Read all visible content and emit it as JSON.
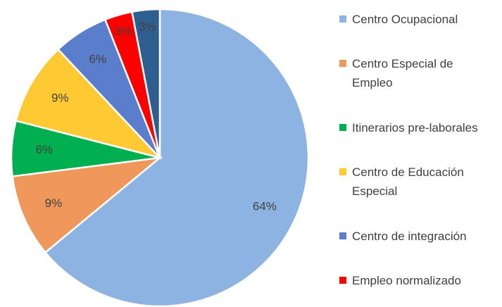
{
  "chart_data": {
    "type": "pie",
    "categories": [
      "Centro Ocupacional",
      "Centro Especial de Empleo",
      "Itinerarios pre-laborales",
      "Centro de Educación Especial",
      "Centro de integración",
      "Empleo normalizado",
      null
    ],
    "values": [
      64,
      9,
      6,
      9,
      6,
      3,
      3
    ],
    "value_labels": [
      "64%",
      "9%",
      "6%",
      "9%",
      "6%",
      "3%",
      "3%"
    ],
    "colors": [
      "#8db3e2",
      "#f0975c",
      "#00b050",
      "#ffc933",
      "#5a7ecb",
      "#ff0000",
      "#2f5f91"
    ],
    "legend": "right"
  }
}
